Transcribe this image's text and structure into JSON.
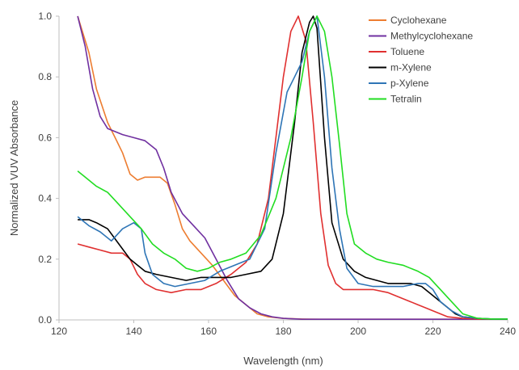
{
  "chart_data": {
    "type": "line",
    "xlabel": "Wavelength (nm)",
    "ylabel": "Normalized VUV Absorbance",
    "xlim": [
      120,
      240
    ],
    "ylim": [
      0.0,
      1.0
    ],
    "x_ticks": [
      "120",
      "140",
      "160",
      "180",
      "200",
      "220",
      "240"
    ],
    "y_ticks": [
      "0.0",
      "0.2",
      "0.4",
      "0.6",
      "0.8",
      "1.0"
    ],
    "grid": false,
    "legend_position": "top-right",
    "series": [
      {
        "name": "Cyclohexane",
        "color": "#ED7D31",
        "x": [
          125,
          128,
          130,
          133,
          135,
          137,
          139,
          141,
          143,
          145,
          147,
          149,
          151,
          153,
          155,
          158,
          161,
          164,
          167,
          170,
          173,
          176,
          180,
          185,
          190,
          200,
          210,
          220,
          230,
          240
        ],
        "y": [
          1.0,
          0.88,
          0.76,
          0.65,
          0.6,
          0.55,
          0.48,
          0.46,
          0.47,
          0.47,
          0.47,
          0.45,
          0.38,
          0.3,
          0.26,
          0.22,
          0.18,
          0.13,
          0.08,
          0.05,
          0.02,
          0.01,
          0.005,
          0.003,
          0.002,
          0.002,
          0.002,
          0.002,
          0.002,
          0.002
        ]
      },
      {
        "name": "Methylcyclohexane",
        "color": "#7030A0",
        "x": [
          125,
          127,
          129,
          131,
          133,
          135,
          137,
          140,
          143,
          146,
          148,
          150,
          153,
          156,
          159,
          162,
          165,
          168,
          171,
          174,
          177,
          180,
          185,
          190,
          200,
          210,
          220,
          230,
          240
        ],
        "y": [
          1.0,
          0.9,
          0.76,
          0.67,
          0.63,
          0.62,
          0.61,
          0.6,
          0.59,
          0.56,
          0.5,
          0.42,
          0.35,
          0.31,
          0.27,
          0.2,
          0.13,
          0.07,
          0.04,
          0.02,
          0.01,
          0.005,
          0.002,
          0.002,
          0.002,
          0.002,
          0.002,
          0.002,
          0.002
        ]
      },
      {
        "name": "Toluene",
        "color": "#E03030",
        "x": [
          125,
          128,
          131,
          134,
          137,
          139,
          141,
          143,
          146,
          150,
          154,
          158,
          162,
          166,
          170,
          173,
          176,
          178,
          180,
          182,
          184,
          186,
          188,
          190,
          192,
          194,
          196,
          198,
          200,
          204,
          208,
          212,
          216,
          220,
          224,
          228,
          232,
          236,
          240
        ],
        "y": [
          0.25,
          0.24,
          0.23,
          0.22,
          0.22,
          0.2,
          0.15,
          0.12,
          0.1,
          0.09,
          0.1,
          0.1,
          0.12,
          0.15,
          0.19,
          0.25,
          0.4,
          0.6,
          0.8,
          0.95,
          1.0,
          0.92,
          0.65,
          0.35,
          0.18,
          0.12,
          0.1,
          0.1,
          0.1,
          0.1,
          0.09,
          0.07,
          0.05,
          0.03,
          0.01,
          0.005,
          0.003,
          0.003,
          0.003
        ]
      },
      {
        "name": "m-Xylene",
        "color": "#000000",
        "x": [
          125,
          128,
          130,
          133,
          136,
          139,
          141,
          143,
          146,
          150,
          154,
          158,
          162,
          166,
          170,
          174,
          177,
          180,
          183,
          185,
          187,
          188,
          189,
          191,
          193,
          196,
          199,
          202,
          205,
          208,
          211,
          214,
          217,
          220,
          223,
          226,
          228,
          232,
          236,
          240
        ],
        "y": [
          0.33,
          0.33,
          0.32,
          0.3,
          0.25,
          0.2,
          0.18,
          0.16,
          0.15,
          0.14,
          0.13,
          0.14,
          0.14,
          0.14,
          0.15,
          0.16,
          0.2,
          0.35,
          0.65,
          0.88,
          0.98,
          1.0,
          0.96,
          0.6,
          0.32,
          0.2,
          0.16,
          0.14,
          0.13,
          0.12,
          0.12,
          0.12,
          0.11,
          0.08,
          0.05,
          0.02,
          0.01,
          0.005,
          0.003,
          0.003
        ]
      },
      {
        "name": "p-Xylene",
        "color": "#2E75B6",
        "x": [
          125,
          128,
          131,
          134,
          137,
          140,
          142,
          143,
          145,
          148,
          151,
          155,
          159,
          163,
          167,
          171,
          175,
          178,
          181,
          183,
          185,
          187,
          189,
          191,
          193,
          195,
          197,
          200,
          204,
          208,
          212,
          216,
          218,
          220,
          222,
          225,
          228,
          232,
          236,
          240
        ],
        "y": [
          0.34,
          0.31,
          0.29,
          0.26,
          0.3,
          0.32,
          0.3,
          0.22,
          0.15,
          0.12,
          0.11,
          0.12,
          0.13,
          0.16,
          0.18,
          0.2,
          0.3,
          0.55,
          0.75,
          0.8,
          0.85,
          0.95,
          1.0,
          0.8,
          0.5,
          0.3,
          0.17,
          0.12,
          0.11,
          0.11,
          0.11,
          0.12,
          0.12,
          0.1,
          0.06,
          0.03,
          0.01,
          0.005,
          0.003,
          0.003
        ]
      },
      {
        "name": "Tetralin",
        "color": "#22DD22",
        "x": [
          125,
          127,
          130,
          133,
          136,
          139,
          142,
          145,
          148,
          151,
          154,
          157,
          160,
          163,
          166,
          170,
          174,
          178,
          182,
          185,
          187,
          189,
          191,
          193,
          195,
          197,
          199,
          202,
          205,
          208,
          212,
          216,
          219,
          222,
          225,
          228,
          232,
          236,
          240
        ],
        "y": [
          0.49,
          0.47,
          0.44,
          0.42,
          0.38,
          0.34,
          0.3,
          0.25,
          0.22,
          0.2,
          0.17,
          0.16,
          0.17,
          0.19,
          0.2,
          0.22,
          0.28,
          0.4,
          0.6,
          0.8,
          0.95,
          1.0,
          0.95,
          0.8,
          0.58,
          0.35,
          0.25,
          0.22,
          0.2,
          0.19,
          0.18,
          0.16,
          0.14,
          0.1,
          0.06,
          0.02,
          0.005,
          0.003,
          0.003
        ]
      }
    ]
  }
}
